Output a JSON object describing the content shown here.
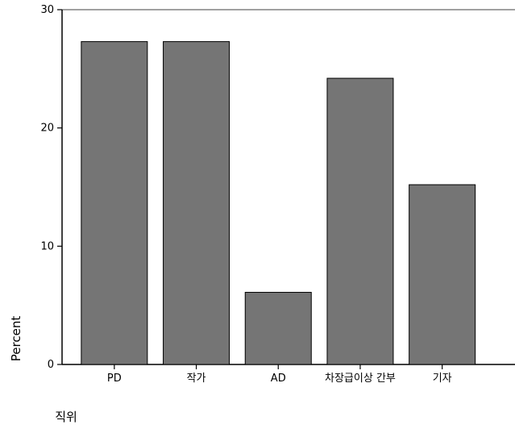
{
  "chart_data": {
    "type": "bar",
    "categories": [
      "PD",
      "작가",
      "AD",
      "차장급이상 간부",
      "기자"
    ],
    "values": [
      27.3,
      27.3,
      6.1,
      24.2,
      15.2
    ],
    "title": "",
    "xlabel": "직위",
    "ylabel": "Percent",
    "ylim": [
      0,
      30
    ],
    "yticks": [
      0,
      10,
      20,
      30
    ],
    "grid": false,
    "legend": "none",
    "colors": {
      "bar_fill": "#757575",
      "bar_stroke": "#000000",
      "axis": "#000000",
      "top_border": "#a0a0a0"
    }
  }
}
